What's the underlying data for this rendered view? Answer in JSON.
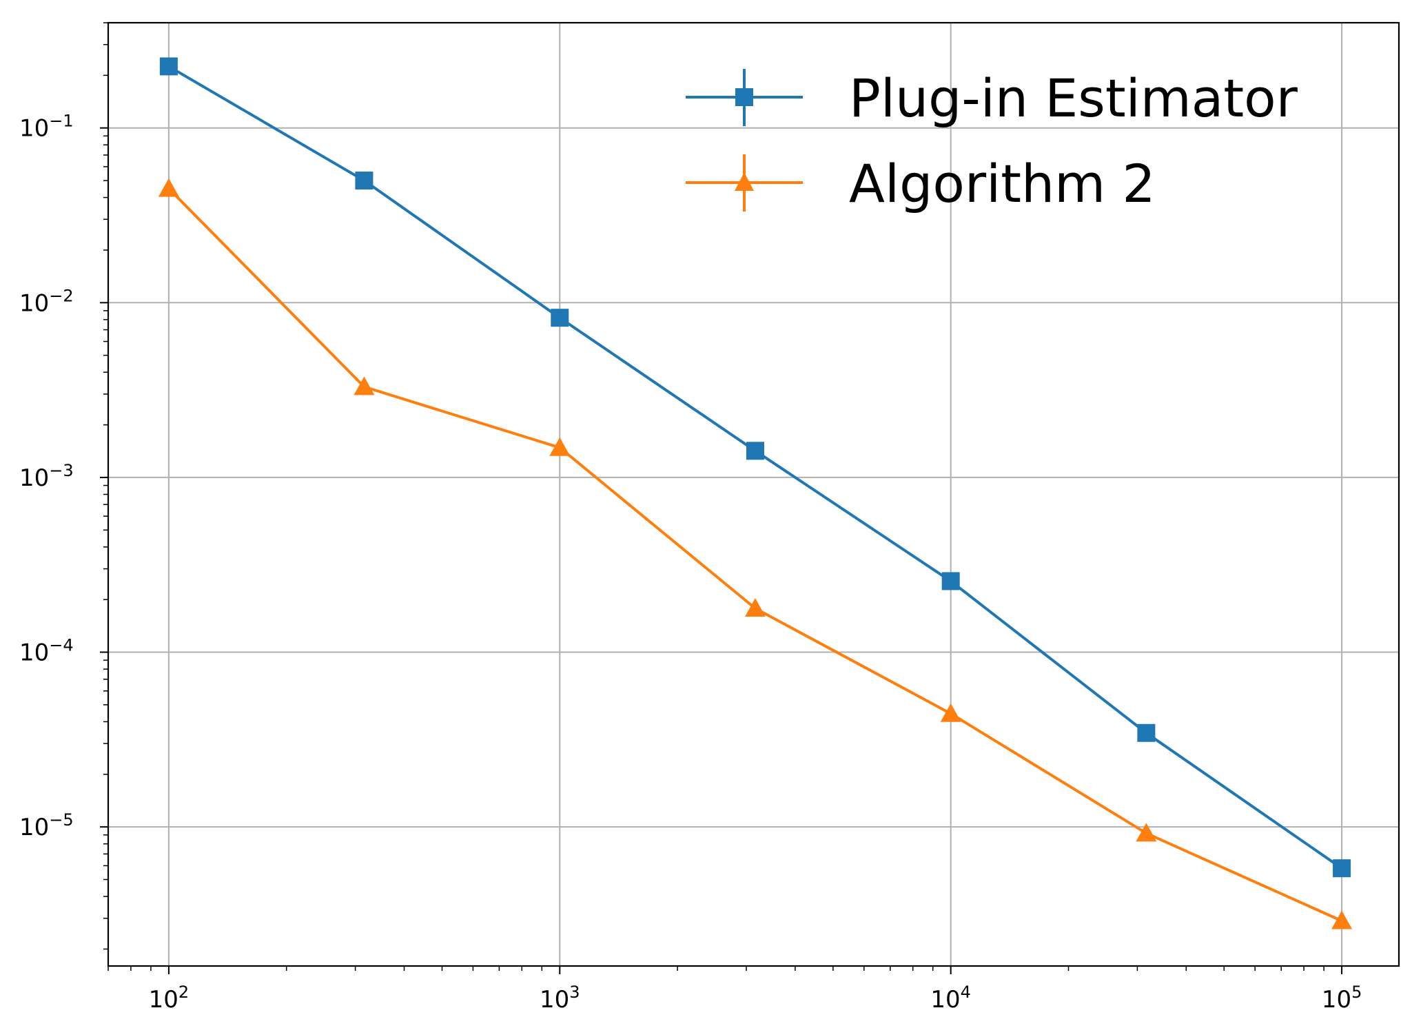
{
  "chart_data": {
    "type": "line",
    "x_scale": "log",
    "y_scale": "log",
    "xlim": [
      70,
      140000
    ],
    "ylim": [
      1.6e-06,
      0.4
    ],
    "grid": true,
    "legend_position": "top-right",
    "xlabel": "",
    "ylabel": "",
    "x_ticks": [
      {
        "value": 100,
        "base": "10",
        "exp": "2"
      },
      {
        "value": 1000,
        "base": "10",
        "exp": "3"
      },
      {
        "value": 10000,
        "base": "10",
        "exp": "4"
      },
      {
        "value": 100000,
        "base": "10",
        "exp": "5"
      }
    ],
    "y_ticks": [
      {
        "value": 0.1,
        "base": "10",
        "exp": "−1"
      },
      {
        "value": 0.01,
        "base": "10",
        "exp": "−2"
      },
      {
        "value": 0.001,
        "base": "10",
        "exp": "−3"
      },
      {
        "value": 0.0001,
        "base": "10",
        "exp": "−4"
      },
      {
        "value": 1e-05,
        "base": "10",
        "exp": "−5"
      }
    ],
    "series": [
      {
        "name": "Plug-in Estimator",
        "color": "#1f77b4",
        "marker": "square",
        "x": [
          100,
          316,
          1000,
          3162,
          10000,
          31623,
          100000
        ],
        "y": [
          0.225,
          0.05,
          0.0082,
          0.00142,
          0.000255,
          3.45e-05,
          5.8e-06
        ]
      },
      {
        "name": "Algorithm 2",
        "color": "#ff7f0e",
        "marker": "triangle",
        "x": [
          100,
          316,
          1000,
          3162,
          10000,
          31623,
          100000
        ],
        "y": [
          0.045,
          0.0033,
          0.00148,
          0.000178,
          4.45e-05,
          9.2e-06,
          2.9e-06
        ]
      }
    ]
  }
}
